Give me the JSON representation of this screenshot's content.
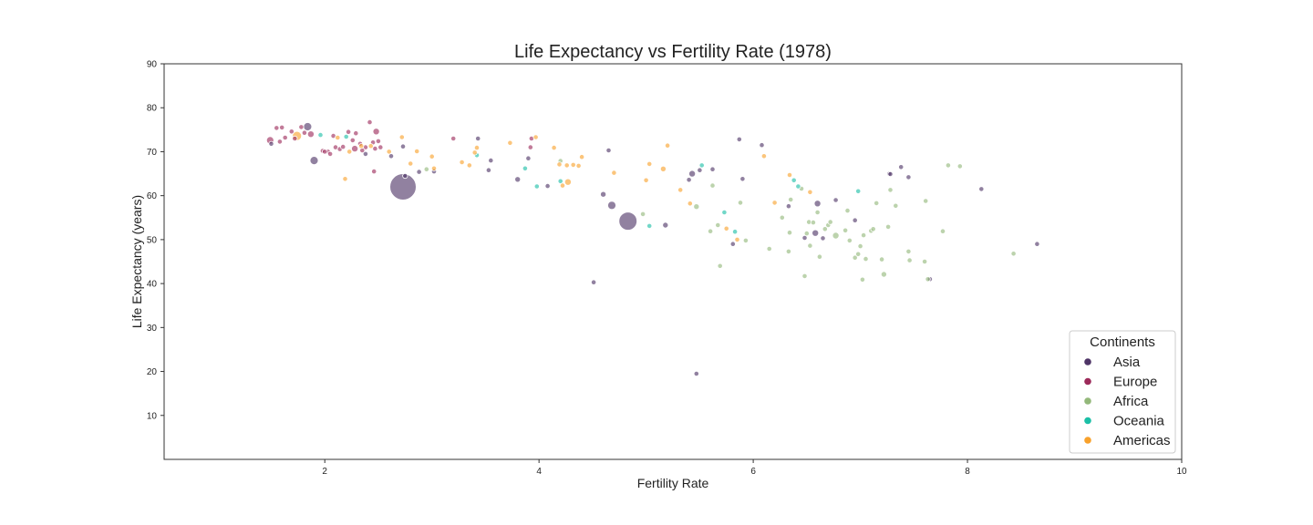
{
  "chart_data": {
    "type": "scatter",
    "title": "Life Expectancy vs Fertility Rate (1978)",
    "xlabel": "Fertility Rate",
    "ylabel": "Life Expectancy (years)",
    "xlim": [
      0.5,
      10
    ],
    "ylim": [
      0,
      90
    ],
    "xticks": [
      2,
      4,
      6,
      8,
      10
    ],
    "yticks": [
      10,
      20,
      30,
      40,
      50,
      60,
      70,
      80,
      90
    ],
    "grid": false,
    "legend": {
      "title": "Continents",
      "placement": "lower-right"
    },
    "series": [
      {
        "name": "Asia",
        "color": "#4e3466",
        "points": [
          [
            2.73,
            62.0,
            3.2
          ],
          [
            4.83,
            54.2,
            2.2
          ],
          [
            1.84,
            75.7,
            1.0
          ],
          [
            1.9,
            68.0,
            1.0
          ],
          [
            4.68,
            57.8,
            1.0
          ],
          [
            5.43,
            65.0,
            0.8
          ],
          [
            6.58,
            51.5,
            0.8
          ],
          [
            6.6,
            58.2,
            0.8
          ],
          [
            2.75,
            64.5,
            0.6
          ],
          [
            5.47,
            19.5,
            0.6
          ],
          [
            7.65,
            41.0,
            0.6
          ],
          [
            8.65,
            49.0,
            0.6
          ],
          [
            4.51,
            40.3,
            0.6
          ],
          [
            5.81,
            49.0,
            0.6
          ],
          [
            5.18,
            53.3,
            0.7
          ],
          [
            5.87,
            72.8,
            0.6
          ],
          [
            6.08,
            71.5,
            0.6
          ],
          [
            4.6,
            60.3,
            0.7
          ],
          [
            3.8,
            63.7,
            0.7
          ],
          [
            3.9,
            68.5,
            0.6
          ],
          [
            3.43,
            73.0,
            0.6
          ],
          [
            3.55,
            68.0,
            0.6
          ],
          [
            2.73,
            71.2,
            0.6
          ],
          [
            2.38,
            69.5,
            0.6
          ],
          [
            2.62,
            69.0,
            0.6
          ],
          [
            2.88,
            65.4,
            0.6
          ],
          [
            3.02,
            65.5,
            0.6
          ],
          [
            5.4,
            63.6,
            0.6
          ],
          [
            5.5,
            65.8,
            0.6
          ],
          [
            5.62,
            66.0,
            0.6
          ],
          [
            6.33,
            57.6,
            0.6
          ],
          [
            6.48,
            50.4,
            0.6
          ],
          [
            7.27,
            65.0,
            0.6
          ],
          [
            7.38,
            66.5,
            0.6
          ],
          [
            7.45,
            64.2,
            0.6
          ],
          [
            8.13,
            61.5,
            0.6
          ],
          [
            6.77,
            59.0,
            0.6
          ],
          [
            6.95,
            54.4,
            0.6
          ],
          [
            4.65,
            70.3,
            0.6
          ],
          [
            6.65,
            50.3,
            0.6
          ],
          [
            4.08,
            62.2,
            0.6
          ],
          [
            1.5,
            71.8,
            0.6
          ],
          [
            3.53,
            65.8,
            0.6
          ],
          [
            5.9,
            63.8,
            0.6
          ],
          [
            7.28,
            64.9,
            0.6
          ]
        ]
      },
      {
        "name": "Europe",
        "color": "#9c2a5a",
        "points": [
          [
            1.49,
            72.6,
            0.9
          ],
          [
            1.55,
            75.4,
            0.6
          ],
          [
            1.6,
            75.5,
            0.6
          ],
          [
            1.63,
            73.2,
            0.6
          ],
          [
            1.69,
            74.6,
            0.6
          ],
          [
            1.72,
            73.0,
            0.6
          ],
          [
            1.78,
            75.6,
            0.6
          ],
          [
            1.81,
            74.3,
            0.6
          ],
          [
            1.87,
            74.0,
            0.8
          ],
          [
            1.98,
            70.2,
            0.6
          ],
          [
            2.03,
            70.0,
            0.6
          ],
          [
            2.08,
            73.6,
            0.6
          ],
          [
            2.1,
            71.0,
            0.6
          ],
          [
            2.14,
            70.6,
            0.6
          ],
          [
            2.17,
            71.1,
            0.6
          ],
          [
            2.22,
            74.5,
            0.6
          ],
          [
            2.26,
            72.6,
            0.6
          ],
          [
            2.28,
            70.7,
            0.8
          ],
          [
            2.29,
            74.2,
            0.6
          ],
          [
            2.33,
            71.8,
            0.6
          ],
          [
            2.38,
            71.0,
            0.6
          ],
          [
            2.42,
            76.7,
            0.6
          ],
          [
            2.45,
            72.1,
            0.6
          ],
          [
            2.47,
            70.7,
            0.6
          ],
          [
            2.48,
            74.6,
            0.8
          ],
          [
            2.5,
            72.4,
            0.6
          ],
          [
            2.52,
            71.0,
            0.6
          ],
          [
            2.46,
            65.5,
            0.6
          ],
          [
            3.2,
            73.0,
            0.6
          ],
          [
            3.92,
            71.0,
            0.6
          ],
          [
            3.93,
            73.0,
            0.6
          ],
          [
            2.05,
            69.5,
            0.6
          ],
          [
            2.35,
            70.3,
            0.6
          ],
          [
            2.0,
            70.0,
            0.6
          ],
          [
            1.58,
            72.3,
            0.6
          ]
        ]
      },
      {
        "name": "Africa",
        "color": "#93b87a",
        "points": [
          [
            2.95,
            66.0,
            0.6
          ],
          [
            4.2,
            67.9,
            0.6
          ],
          [
            4.97,
            55.8,
            0.6
          ],
          [
            5.47,
            57.5,
            0.7
          ],
          [
            5.6,
            51.9,
            0.6
          ],
          [
            5.62,
            62.3,
            0.6
          ],
          [
            5.67,
            53.3,
            0.6
          ],
          [
            5.69,
            44.0,
            0.6
          ],
          [
            5.88,
            58.4,
            0.6
          ],
          [
            5.93,
            49.8,
            0.6
          ],
          [
            6.15,
            47.9,
            0.6
          ],
          [
            6.27,
            55.0,
            0.6
          ],
          [
            6.33,
            47.3,
            0.6
          ],
          [
            6.34,
            51.6,
            0.6
          ],
          [
            6.35,
            59.1,
            0.6
          ],
          [
            6.45,
            61.6,
            0.6
          ],
          [
            6.48,
            41.7,
            0.6
          ],
          [
            6.5,
            51.4,
            0.6
          ],
          [
            6.52,
            54.0,
            0.6
          ],
          [
            6.53,
            48.6,
            0.6
          ],
          [
            6.56,
            53.9,
            0.6
          ],
          [
            6.6,
            56.2,
            0.6
          ],
          [
            6.62,
            46.1,
            0.6
          ],
          [
            6.67,
            52.4,
            0.6
          ],
          [
            6.7,
            53.3,
            0.6
          ],
          [
            6.72,
            54.0,
            0.6
          ],
          [
            6.77,
            50.9,
            0.8
          ],
          [
            6.86,
            52.1,
            0.6
          ],
          [
            6.88,
            56.6,
            0.6
          ],
          [
            6.9,
            49.8,
            0.6
          ],
          [
            6.95,
            45.9,
            0.6
          ],
          [
            6.98,
            46.7,
            0.6
          ],
          [
            7.0,
            48.5,
            0.6
          ],
          [
            7.02,
            40.9,
            0.6
          ],
          [
            7.03,
            51.0,
            0.6
          ],
          [
            7.05,
            45.6,
            0.6
          ],
          [
            7.1,
            52.0,
            0.6
          ],
          [
            7.12,
            52.4,
            0.6
          ],
          [
            7.15,
            58.3,
            0.6
          ],
          [
            7.2,
            45.5,
            0.6
          ],
          [
            7.22,
            42.1,
            0.7
          ],
          [
            7.26,
            52.9,
            0.6
          ],
          [
            7.28,
            61.3,
            0.6
          ],
          [
            7.33,
            57.7,
            0.6
          ],
          [
            7.45,
            47.3,
            0.6
          ],
          [
            7.46,
            45.3,
            0.6
          ],
          [
            7.6,
            45.0,
            0.6
          ],
          [
            7.61,
            58.8,
            0.6
          ],
          [
            7.63,
            41.0,
            0.6
          ],
          [
            7.77,
            51.9,
            0.6
          ],
          [
            7.82,
            66.9,
            0.6
          ],
          [
            7.93,
            66.7,
            0.6
          ],
          [
            8.43,
            46.8,
            0.6
          ]
        ]
      },
      {
        "name": "Oceania",
        "color": "#1bbfa6",
        "points": [
          [
            1.96,
            73.8,
            0.6
          ],
          [
            2.2,
            73.4,
            0.6
          ],
          [
            3.42,
            69.2,
            0.6
          ],
          [
            3.87,
            66.2,
            0.6
          ],
          [
            3.98,
            62.1,
            0.6
          ],
          [
            4.2,
            63.3,
            0.6
          ],
          [
            5.03,
            53.1,
            0.6
          ],
          [
            5.52,
            66.9,
            0.6
          ],
          [
            5.73,
            56.2,
            0.6
          ],
          [
            5.83,
            51.8,
            0.6
          ],
          [
            6.38,
            63.5,
            0.6
          ],
          [
            6.42,
            62.1,
            0.6
          ],
          [
            6.98,
            61.0,
            0.6
          ]
        ]
      },
      {
        "name": "Americas",
        "color": "#f8a12b",
        "points": [
          [
            1.74,
            73.6,
            1.1
          ],
          [
            2.12,
            73.2,
            0.6
          ],
          [
            2.19,
            63.8,
            0.6
          ],
          [
            2.23,
            70.0,
            0.6
          ],
          [
            2.34,
            71.3,
            0.6
          ],
          [
            2.43,
            71.3,
            0.6
          ],
          [
            2.6,
            70.0,
            0.6
          ],
          [
            2.72,
            73.3,
            0.6
          ],
          [
            2.8,
            67.3,
            0.6
          ],
          [
            2.86,
            70.1,
            0.6
          ],
          [
            3.0,
            68.9,
            0.6
          ],
          [
            3.02,
            66.2,
            0.6
          ],
          [
            3.28,
            67.6,
            0.6
          ],
          [
            3.35,
            66.9,
            0.6
          ],
          [
            3.4,
            69.8,
            0.6
          ],
          [
            3.42,
            70.9,
            0.6
          ],
          [
            3.73,
            72.0,
            0.6
          ],
          [
            3.97,
            73.3,
            0.6
          ],
          [
            4.14,
            70.9,
            0.6
          ],
          [
            4.19,
            67.1,
            0.6
          ],
          [
            4.22,
            62.3,
            0.6
          ],
          [
            4.26,
            66.9,
            0.6
          ],
          [
            4.27,
            63.1,
            0.8
          ],
          [
            4.32,
            67.0,
            0.6
          ],
          [
            4.37,
            66.8,
            0.6
          ],
          [
            4.4,
            68.8,
            0.6
          ],
          [
            4.7,
            65.2,
            0.6
          ],
          [
            5.0,
            63.5,
            0.6
          ],
          [
            5.03,
            67.2,
            0.6
          ],
          [
            5.16,
            66.1,
            0.7
          ],
          [
            5.2,
            71.4,
            0.6
          ],
          [
            5.32,
            61.3,
            0.6
          ],
          [
            5.41,
            58.2,
            0.6
          ],
          [
            5.75,
            52.5,
            0.6
          ],
          [
            5.85,
            50.0,
            0.6
          ],
          [
            6.1,
            69.0,
            0.6
          ],
          [
            6.2,
            58.4,
            0.6
          ],
          [
            6.34,
            64.7,
            0.6
          ],
          [
            6.53,
            60.8,
            0.6
          ]
        ]
      }
    ]
  }
}
